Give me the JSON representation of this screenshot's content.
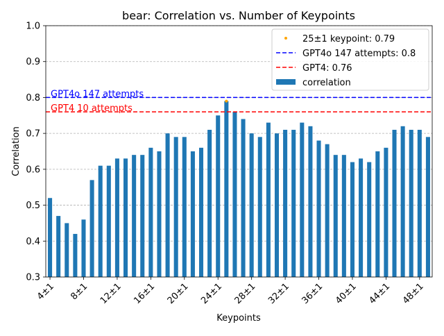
{
  "chart_data": {
    "type": "bar",
    "title": "bear: Correlation vs. Number of Keypoints",
    "xlabel": "Keypoints",
    "ylabel": "Correlation",
    "ylim": [
      0.3,
      1.0
    ],
    "yticks": [
      0.3,
      0.4,
      0.5,
      0.6,
      0.7,
      0.8,
      0.9,
      1.0
    ],
    "grid": "horizontal dashed",
    "legend_position": "top-right",
    "categories": [
      "4±1",
      "5±1",
      "6±1",
      "7±1",
      "8±1",
      "9±1",
      "10±1",
      "11±1",
      "12±1",
      "13±1",
      "14±1",
      "15±1",
      "16±1",
      "17±1",
      "18±1",
      "19±1",
      "20±1",
      "21±1",
      "22±1",
      "23±1",
      "24±1",
      "25±1",
      "26±1",
      "27±1",
      "28±1",
      "29±1",
      "30±1",
      "31±1",
      "32±1",
      "33±1",
      "34±1",
      "35±1",
      "36±1",
      "37±1",
      "38±1",
      "39±1",
      "40±1",
      "41±1",
      "42±1",
      "43±1",
      "44±1",
      "45±1",
      "46±1",
      "47±1",
      "48±1",
      "49±1"
    ],
    "tick_labels_shown": [
      "4±1",
      "8±1",
      "12±1",
      "16±1",
      "20±1",
      "24±1",
      "28±1",
      "32±1",
      "36±1",
      "40±1",
      "44±1",
      "48±1"
    ],
    "series": [
      {
        "name": "correlation",
        "color": "#1f77b4",
        "values": [
          0.52,
          0.47,
          0.45,
          0.42,
          0.46,
          0.57,
          0.61,
          0.61,
          0.63,
          0.63,
          0.64,
          0.64,
          0.66,
          0.65,
          0.7,
          0.69,
          0.69,
          0.65,
          0.66,
          0.71,
          0.75,
          0.79,
          0.76,
          0.74,
          0.7,
          0.69,
          0.73,
          0.7,
          0.71,
          0.71,
          0.73,
          0.72,
          0.68,
          0.67,
          0.64,
          0.64,
          0.62,
          0.63,
          0.62,
          0.65,
          0.66,
          0.71,
          0.72,
          0.71,
          0.71,
          0.69
        ]
      }
    ],
    "highlight_point": {
      "category": "25±1",
      "value": 0.79,
      "color": "#ffa500",
      "legend": "25±1 keypoint: 0.79"
    },
    "reference_lines": [
      {
        "value": 0.8,
        "color": "#0000ff",
        "style": "dashed",
        "legend": "GPT4o 147 attempts: 0.8",
        "annotation": "GPT4o 147 attempts"
      },
      {
        "value": 0.76,
        "color": "#ff0000",
        "style": "dashed",
        "legend": "GPT4: 0.76",
        "annotation": "GPT4 10 attempts"
      }
    ]
  }
}
